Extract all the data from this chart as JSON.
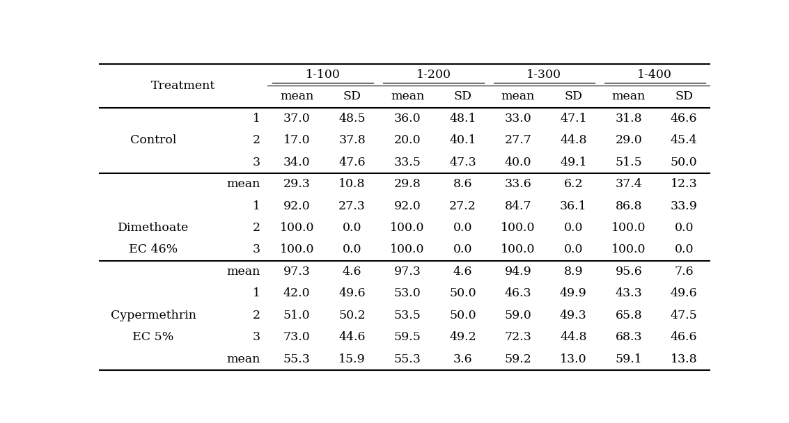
{
  "col_groups": [
    "1-100",
    "1-200",
    "1-300",
    "1-400"
  ],
  "rows": [
    {
      "treat1": "Treatment",
      "treat2": "",
      "label2": "",
      "vals": [
        "",
        "",
        "",
        "",
        "",
        "",
        "",
        ""
      ],
      "is_header1": true
    },
    {
      "treat1": "",
      "treat2": "",
      "label2": "",
      "vals": [
        "mean",
        "SD",
        "mean",
        "SD",
        "mean",
        "SD",
        "mean",
        "SD"
      ],
      "is_subheader": true
    },
    {
      "treat1": "",
      "treat2": "",
      "label2": "1",
      "vals": [
        "37.0",
        "48.5",
        "36.0",
        "48.1",
        "33.0",
        "47.1",
        "31.8",
        "46.6"
      ]
    },
    {
      "treat1": "Control",
      "treat2": "",
      "label2": "2",
      "vals": [
        "17.0",
        "37.8",
        "20.0",
        "40.1",
        "27.7",
        "44.8",
        "29.0",
        "45.4"
      ]
    },
    {
      "treat1": "",
      "treat2": "",
      "label2": "3",
      "vals": [
        "34.0",
        "47.6",
        "33.5",
        "47.3",
        "40.0",
        "49.1",
        "51.5",
        "50.0"
      ]
    },
    {
      "treat1": "",
      "treat2": "",
      "label2": "mean",
      "vals": [
        "29.3",
        "10.8",
        "29.8",
        "8.6",
        "33.6",
        "6.2",
        "37.4",
        "12.3"
      ]
    },
    {
      "treat1": "",
      "treat2": "",
      "label2": "1",
      "vals": [
        "92.0",
        "27.3",
        "92.0",
        "27.2",
        "84.7",
        "36.1",
        "86.8",
        "33.9"
      ]
    },
    {
      "treat1": "Dimethoate",
      "treat2": "",
      "label2": "2",
      "vals": [
        "100.0",
        "0.0",
        "100.0",
        "0.0",
        "100.0",
        "0.0",
        "100.0",
        "0.0"
      ]
    },
    {
      "treat1": "EC 46%",
      "treat2": "",
      "label2": "3",
      "vals": [
        "100.0",
        "0.0",
        "100.0",
        "0.0",
        "100.0",
        "0.0",
        "100.0",
        "0.0"
      ]
    },
    {
      "treat1": "",
      "treat2": "",
      "label2": "mean",
      "vals": [
        "97.3",
        "4.6",
        "97.3",
        "4.6",
        "94.9",
        "8.9",
        "95.6",
        "7.6"
      ]
    },
    {
      "treat1": "",
      "treat2": "",
      "label2": "1",
      "vals": [
        "42.0",
        "49.6",
        "53.0",
        "50.0",
        "46.3",
        "49.9",
        "43.3",
        "49.6"
      ]
    },
    {
      "treat1": "Cypermethrin",
      "treat2": "",
      "label2": "2",
      "vals": [
        "51.0",
        "50.2",
        "53.5",
        "50.0",
        "59.0",
        "49.3",
        "65.8",
        "47.5"
      ]
    },
    {
      "treat1": "EC 5%",
      "treat2": "",
      "label2": "3",
      "vals": [
        "73.0",
        "44.6",
        "59.5",
        "49.2",
        "72.3",
        "44.8",
        "68.3",
        "46.6"
      ]
    },
    {
      "treat1": "",
      "treat2": "",
      "label2": "mean",
      "vals": [
        "55.3",
        "15.9",
        "55.3",
        "3.6",
        "59.2",
        "13.0",
        "59.1",
        "13.8"
      ]
    }
  ],
  "n_data_rows": 12,
  "n_header_rows": 2,
  "section_dividers_after_data_row": [
    3,
    7
  ],
  "bg_color": "#ffffff",
  "text_color": "#000000",
  "font_size": 12.5
}
